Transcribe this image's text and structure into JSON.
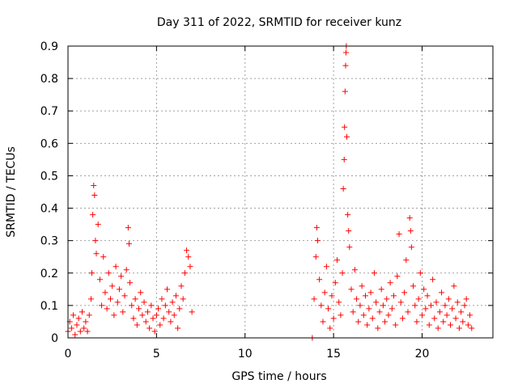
{
  "chart_data": {
    "type": "scatter",
    "title": "Day 311 of 2022, SRMTID for receiver kunz",
    "xlabel": "GPS time / hours",
    "ylabel": "SRMTID / TECUs",
    "xlim": [
      0,
      24
    ],
    "ylim": [
      0,
      0.9
    ],
    "xticks": [
      0,
      5,
      10,
      15,
      20
    ],
    "yticks": [
      0,
      0.1,
      0.2,
      0.3,
      0.4,
      0.5,
      0.6,
      0.7,
      0.8,
      0.9
    ],
    "xtick_labels": [
      "0",
      "5",
      "10",
      "15",
      "20"
    ],
    "ytick_labels": [
      "0",
      "0.1",
      "0.2",
      "0.3",
      "0.4",
      "0.5",
      "0.6",
      "0.7",
      "0.8",
      "0.9"
    ],
    "grid": true,
    "marker": "+",
    "color": "#ff0000",
    "series": [
      {
        "name": "SRMTID",
        "points": [
          [
            0.0,
            0.02
          ],
          [
            0.1,
            0.05
          ],
          [
            0.2,
            0.03
          ],
          [
            0.3,
            0.07
          ],
          [
            0.4,
            0.01
          ],
          [
            0.5,
            0.04
          ],
          [
            0.6,
            0.06
          ],
          [
            0.7,
            0.02
          ],
          [
            0.8,
            0.08
          ],
          [
            0.9,
            0.03
          ],
          [
            1.0,
            0.05
          ],
          [
            1.1,
            0.02
          ],
          [
            1.2,
            0.07
          ],
          [
            1.3,
            0.12
          ],
          [
            1.35,
            0.2
          ],
          [
            1.4,
            0.38
          ],
          [
            1.45,
            0.47
          ],
          [
            1.5,
            0.44
          ],
          [
            1.55,
            0.3
          ],
          [
            1.6,
            0.26
          ],
          [
            1.7,
            0.35
          ],
          [
            1.8,
            0.18
          ],
          [
            1.9,
            0.1
          ],
          [
            2.0,
            0.25
          ],
          [
            2.1,
            0.14
          ],
          [
            2.2,
            0.09
          ],
          [
            2.3,
            0.2
          ],
          [
            2.4,
            0.12
          ],
          [
            2.5,
            0.16
          ],
          [
            2.6,
            0.07
          ],
          [
            2.7,
            0.22
          ],
          [
            2.8,
            0.11
          ],
          [
            2.9,
            0.15
          ],
          [
            3.0,
            0.19
          ],
          [
            3.1,
            0.08
          ],
          [
            3.2,
            0.13
          ],
          [
            3.3,
            0.21
          ],
          [
            3.4,
            0.34
          ],
          [
            3.45,
            0.29
          ],
          [
            3.5,
            0.17
          ],
          [
            3.6,
            0.1
          ],
          [
            3.7,
            0.06
          ],
          [
            3.8,
            0.12
          ],
          [
            3.9,
            0.04
          ],
          [
            4.0,
            0.09
          ],
          [
            4.1,
            0.14
          ],
          [
            4.2,
            0.07
          ],
          [
            4.3,
            0.11
          ],
          [
            4.4,
            0.05
          ],
          [
            4.5,
            0.08
          ],
          [
            4.6,
            0.03
          ],
          [
            4.7,
            0.1
          ],
          [
            4.8,
            0.06
          ],
          [
            4.9,
            0.02
          ],
          [
            5.0,
            0.07
          ],
          [
            5.1,
            0.09
          ],
          [
            5.2,
            0.04
          ],
          [
            5.3,
            0.12
          ],
          [
            5.4,
            0.06
          ],
          [
            5.5,
            0.1
          ],
          [
            5.6,
            0.15
          ],
          [
            5.7,
            0.08
          ],
          [
            5.8,
            0.05
          ],
          [
            5.9,
            0.11
          ],
          [
            6.0,
            0.07
          ],
          [
            6.1,
            0.13
          ],
          [
            6.2,
            0.03
          ],
          [
            6.3,
            0.09
          ],
          [
            6.4,
            0.16
          ],
          [
            6.5,
            0.12
          ],
          [
            6.6,
            0.2
          ],
          [
            6.7,
            0.27
          ],
          [
            6.8,
            0.25
          ],
          [
            6.9,
            0.22
          ],
          [
            7.0,
            0.08
          ],
          [
            13.8,
            0.0
          ],
          [
            13.9,
            0.12
          ],
          [
            14.0,
            0.25
          ],
          [
            14.05,
            0.34
          ],
          [
            14.1,
            0.3
          ],
          [
            14.2,
            0.18
          ],
          [
            14.3,
            0.1
          ],
          [
            14.4,
            0.05
          ],
          [
            14.5,
            0.14
          ],
          [
            14.6,
            0.22
          ],
          [
            14.7,
            0.09
          ],
          [
            14.8,
            0.03
          ],
          [
            14.9,
            0.13
          ],
          [
            15.0,
            0.06
          ],
          [
            15.1,
            0.17
          ],
          [
            15.2,
            0.24
          ],
          [
            15.3,
            0.11
          ],
          [
            15.4,
            0.07
          ],
          [
            15.5,
            0.2
          ],
          [
            15.55,
            0.46
          ],
          [
            15.6,
            0.55
          ],
          [
            15.62,
            0.65
          ],
          [
            15.65,
            0.76
          ],
          [
            15.68,
            0.84
          ],
          [
            15.7,
            0.88
          ],
          [
            15.72,
            0.9
          ],
          [
            15.75,
            0.62
          ],
          [
            15.8,
            0.38
          ],
          [
            15.85,
            0.33
          ],
          [
            15.9,
            0.28
          ],
          [
            16.0,
            0.15
          ],
          [
            16.1,
            0.08
          ],
          [
            16.2,
            0.21
          ],
          [
            16.3,
            0.12
          ],
          [
            16.4,
            0.05
          ],
          [
            16.5,
            0.1
          ],
          [
            16.6,
            0.16
          ],
          [
            16.7,
            0.07
          ],
          [
            16.8,
            0.13
          ],
          [
            16.9,
            0.04
          ],
          [
            17.0,
            0.09
          ],
          [
            17.1,
            0.14
          ],
          [
            17.2,
            0.06
          ],
          [
            17.3,
            0.2
          ],
          [
            17.4,
            0.11
          ],
          [
            17.5,
            0.03
          ],
          [
            17.6,
            0.08
          ],
          [
            17.7,
            0.15
          ],
          [
            17.8,
            0.1
          ],
          [
            17.9,
            0.05
          ],
          [
            18.0,
            0.12
          ],
          [
            18.1,
            0.07
          ],
          [
            18.2,
            0.17
          ],
          [
            18.3,
            0.09
          ],
          [
            18.4,
            0.13
          ],
          [
            18.5,
            0.04
          ],
          [
            18.6,
            0.19
          ],
          [
            18.7,
            0.32
          ],
          [
            18.8,
            0.11
          ],
          [
            18.9,
            0.06
          ],
          [
            19.0,
            0.14
          ],
          [
            19.1,
            0.24
          ],
          [
            19.2,
            0.08
          ],
          [
            19.3,
            0.37
          ],
          [
            19.35,
            0.33
          ],
          [
            19.4,
            0.28
          ],
          [
            19.5,
            0.16
          ],
          [
            19.6,
            0.1
          ],
          [
            19.7,
            0.05
          ],
          [
            19.8,
            0.12
          ],
          [
            19.9,
            0.2
          ],
          [
            20.0,
            0.07
          ],
          [
            20.1,
            0.15
          ],
          [
            20.2,
            0.09
          ],
          [
            20.3,
            0.13
          ],
          [
            20.4,
            0.04
          ],
          [
            20.5,
            0.1
          ],
          [
            20.6,
            0.18
          ],
          [
            20.7,
            0.06
          ],
          [
            20.8,
            0.11
          ],
          [
            20.9,
            0.03
          ],
          [
            21.0,
            0.08
          ],
          [
            21.1,
            0.14
          ],
          [
            21.2,
            0.05
          ],
          [
            21.3,
            0.1
          ],
          [
            21.4,
            0.07
          ],
          [
            21.5,
            0.12
          ],
          [
            21.6,
            0.04
          ],
          [
            21.7,
            0.09
          ],
          [
            21.8,
            0.16
          ],
          [
            21.9,
            0.06
          ],
          [
            22.0,
            0.11
          ],
          [
            22.1,
            0.03
          ],
          [
            22.2,
            0.08
          ],
          [
            22.3,
            0.05
          ],
          [
            22.4,
            0.1
          ],
          [
            22.5,
            0.12
          ],
          [
            22.6,
            0.04
          ],
          [
            22.7,
            0.07
          ],
          [
            22.8,
            0.03
          ]
        ]
      }
    ]
  }
}
